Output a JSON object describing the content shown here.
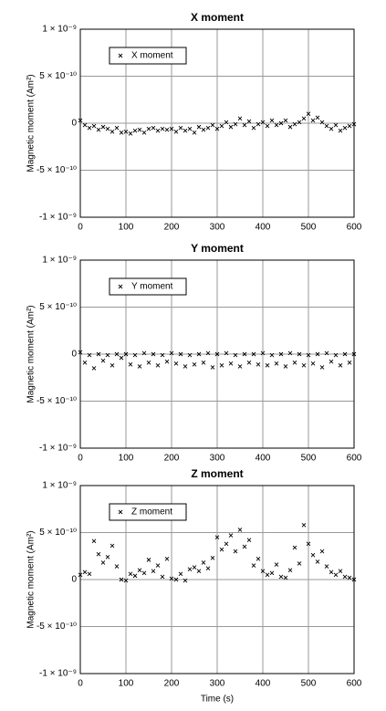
{
  "chart_data": [
    {
      "type": "scatter",
      "title": "X moment",
      "ylabel": "Magnetic moment (Am²)",
      "grid": true,
      "legend": "upper left",
      "xlim": [
        0,
        600
      ],
      "xticks": [
        0,
        100,
        200,
        300,
        400,
        500,
        600
      ],
      "ylim": [
        -1e-09,
        1e-09
      ],
      "yticks": [
        {
          "value": -1e-09,
          "label": "-1 × 10⁻⁹"
        },
        {
          "value": -5e-10,
          "label": "-5 × 10⁻¹⁰"
        },
        0,
        {
          "value": 5e-10,
          "label": "5 × 10⁻¹⁰"
        },
        {
          "value": 1e-09,
          "label": "1 × 10⁻⁹"
        }
      ],
      "x": [
        0,
        10,
        20,
        30,
        40,
        50,
        60,
        70,
        80,
        90,
        100,
        110,
        120,
        130,
        140,
        150,
        160,
        170,
        180,
        190,
        200,
        210,
        220,
        230,
        240,
        250,
        260,
        270,
        280,
        290,
        300,
        310,
        320,
        330,
        340,
        350,
        360,
        370,
        380,
        390,
        400,
        410,
        420,
        430,
        440,
        450,
        460,
        470,
        480,
        490,
        500,
        510,
        520,
        530,
        540,
        550,
        560,
        570,
        580,
        590,
        600
      ],
      "series": [
        {
          "name": "X moment",
          "color": "#000000",
          "values": [
            3e-11,
            -2e-11,
            -5e-11,
            -3e-11,
            -7e-11,
            -4e-11,
            -6e-11,
            -9e-11,
            -5e-11,
            -1e-10,
            -9e-11,
            -1.1e-10,
            -8e-11,
            -7e-11,
            -1e-10,
            -6e-11,
            -5e-11,
            -8e-11,
            -6e-11,
            -7e-11,
            -6e-11,
            -9e-11,
            -5e-11,
            -8e-11,
            -6e-11,
            -1e-10,
            -4e-11,
            -7e-11,
            -5e-11,
            -2e-11,
            -6e-11,
            -3e-11,
            1e-11,
            -4e-11,
            -1e-11,
            5e-11,
            -2e-11,
            2e-11,
            -5e-11,
            -1e-11,
            1e-11,
            -3e-11,
            3e-11,
            -2e-11,
            0,
            3e-11,
            -4e-11,
            -1e-11,
            1e-11,
            5e-11,
            1e-10,
            3e-11,
            6e-11,
            1e-11,
            -3e-11,
            -6e-11,
            -2e-11,
            -8e-11,
            -5e-11,
            -3e-11,
            -1e-11
          ]
        }
      ]
    },
    {
      "type": "scatter",
      "title": "Y moment",
      "ylabel": "Magnetic moment (Am²)",
      "grid": true,
      "legend": "upper left",
      "xlim": [
        0,
        600
      ],
      "xticks": [
        0,
        100,
        200,
        300,
        400,
        500,
        600
      ],
      "ylim": [
        -1e-09,
        1e-09
      ],
      "yticks": [
        {
          "value": -1e-09,
          "label": "-1 × 10⁻⁹"
        },
        {
          "value": -5e-10,
          "label": "-5 × 10⁻¹⁰"
        },
        0,
        {
          "value": 5e-10,
          "label": "5 × 10⁻¹⁰"
        },
        {
          "value": 1e-09,
          "label": "1 × 10⁻⁹"
        }
      ],
      "x": [
        0,
        10,
        20,
        30,
        40,
        50,
        60,
        70,
        80,
        90,
        100,
        110,
        120,
        130,
        140,
        150,
        160,
        170,
        180,
        190,
        200,
        210,
        220,
        230,
        240,
        250,
        260,
        270,
        280,
        290,
        300,
        310,
        320,
        330,
        340,
        350,
        360,
        370,
        380,
        390,
        400,
        410,
        420,
        430,
        440,
        450,
        460,
        470,
        480,
        490,
        500,
        510,
        520,
        530,
        540,
        550,
        560,
        570,
        580,
        590,
        600
      ],
      "series": [
        {
          "name": "Y moment",
          "color": "#000000",
          "values": [
            2e-11,
            -9e-11,
            -1e-11,
            -1.5e-10,
            0,
            -7e-11,
            -1e-11,
            -1.2e-10,
            0,
            -4e-11,
            0,
            -1.1e-10,
            -1e-11,
            -1.3e-10,
            1e-11,
            -9e-11,
            0,
            -1.2e-10,
            -1e-11,
            -8e-11,
            1e-11,
            -1e-10,
            0,
            -1.3e-10,
            -1e-11,
            -1.1e-10,
            0,
            -9e-11,
            1e-11,
            -1.4e-10,
            0,
            -1.2e-10,
            1e-11,
            -1e-10,
            -1e-11,
            -1.3e-10,
            0,
            -9e-11,
            0,
            -1.1e-10,
            1e-11,
            -1.2e-10,
            -1e-11,
            -1e-10,
            0,
            -1.3e-10,
            1e-11,
            -9e-11,
            0,
            -1.2e-10,
            -1e-11,
            -1e-10,
            0,
            -1.4e-10,
            1e-11,
            -8e-11,
            -1e-11,
            -1.2e-10,
            0,
            -9e-11,
            0
          ]
        }
      ]
    },
    {
      "type": "scatter",
      "title": "Z moment",
      "ylabel": "Magnetic moment (Am²)",
      "xlabel": "Time (s)",
      "grid": true,
      "legend": "upper left",
      "xlim": [
        0,
        600
      ],
      "xticks": [
        0,
        100,
        200,
        300,
        400,
        500,
        600
      ],
      "ylim": [
        -1e-09,
        1e-09
      ],
      "yticks": [
        {
          "value": -1e-09,
          "label": "-1 × 10⁻⁹"
        },
        {
          "value": -5e-10,
          "label": "-5 × 10⁻¹⁰"
        },
        0,
        {
          "value": 5e-10,
          "label": "5 × 10⁻¹⁰"
        },
        {
          "value": 1e-09,
          "label": "1 × 10⁻⁹"
        }
      ],
      "x": [
        0,
        10,
        20,
        30,
        40,
        50,
        60,
        70,
        80,
        90,
        100,
        110,
        120,
        130,
        140,
        150,
        160,
        170,
        180,
        190,
        200,
        210,
        220,
        230,
        240,
        250,
        260,
        270,
        280,
        290,
        300,
        310,
        320,
        330,
        340,
        350,
        360,
        370,
        380,
        390,
        400,
        410,
        420,
        430,
        440,
        450,
        460,
        470,
        480,
        490,
        500,
        510,
        520,
        530,
        540,
        550,
        560,
        570,
        580,
        590,
        600
      ],
      "series": [
        {
          "name": "Z moment",
          "color": "#000000",
          "values": [
            5e-11,
            8e-11,
            6e-11,
            4.1e-10,
            2.7e-10,
            1.8e-10,
            2.4e-10,
            3.6e-10,
            1.4e-10,
            0,
            -1e-11,
            6e-11,
            4e-11,
            1e-10,
            7e-11,
            2.1e-10,
            9e-11,
            1.5e-10,
            3e-11,
            2.2e-10,
            1e-11,
            0,
            6e-11,
            -1e-11,
            1.1e-10,
            1.3e-10,
            9e-11,
            1.8e-10,
            1.2e-10,
            2.3e-10,
            4.5e-10,
            3.2e-10,
            3.8e-10,
            4.7e-10,
            3e-10,
            5.3e-10,
            3.5e-10,
            4.2e-10,
            1.5e-10,
            2.2e-10,
            9e-11,
            5e-11,
            7e-11,
            1.6e-10,
            3e-11,
            2e-11,
            1e-10,
            3.4e-10,
            1.7e-10,
            5.8e-10,
            3.8e-10,
            2.6e-10,
            1.9e-10,
            3e-10,
            1.4e-10,
            8e-11,
            5e-11,
            9e-11,
            3e-11,
            2e-11,
            0
          ]
        }
      ]
    }
  ]
}
